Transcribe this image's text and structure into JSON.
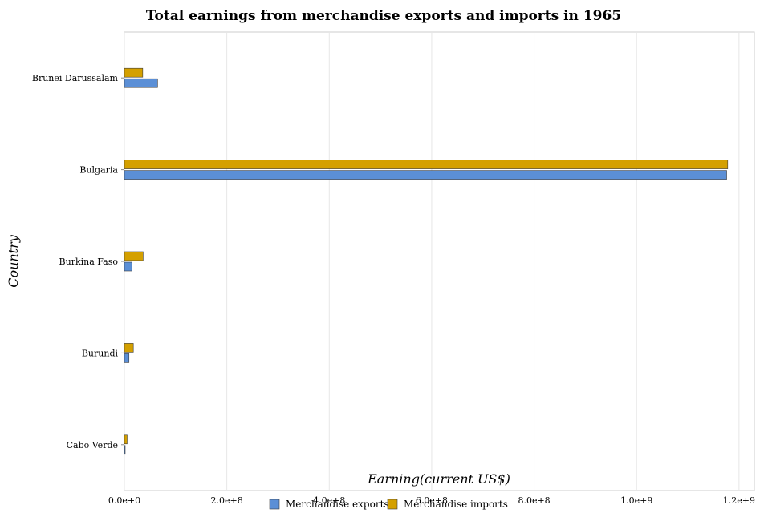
{
  "chart_data": {
    "type": "bar",
    "orientation": "horizontal",
    "title": "Total earnings from merchandise exports and imports in 1965",
    "xlabel": "Earning(current US$)",
    "ylabel": "Country",
    "categories": [
      "Brunei Darussalam",
      "Bulgaria",
      "Burkina Faso",
      "Burundi",
      "Cabo Verde"
    ],
    "series": [
      {
        "name": "Merchandise exports",
        "color": "#5b8fd6",
        "values": [
          64800000,
          1176000000,
          14500000,
          9000000,
          1000000
        ]
      },
      {
        "name": "Merchandise imports",
        "color": "#d4a000",
        "values": [
          35800000,
          1178000000,
          36600000,
          17500000,
          5400000
        ]
      }
    ],
    "xlim": [
      0,
      1230000000
    ],
    "xticks": [
      0,
      200000000,
      400000000,
      600000000,
      800000000,
      1000000000,
      1200000000
    ],
    "xtick_labels": [
      "0.0e+0",
      "2.0e+8",
      "4.0e+8",
      "6.0e+8",
      "8.0e+8",
      "1.0e+9",
      "1.2e+9"
    ],
    "grid": true,
    "legend_position": "bottom-center"
  }
}
